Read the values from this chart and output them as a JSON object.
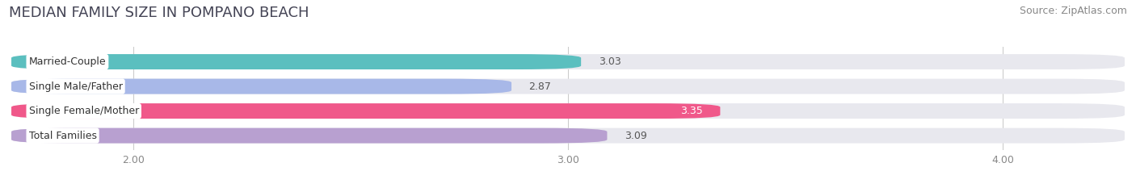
{
  "title": "MEDIAN FAMILY SIZE IN POMPANO BEACH",
  "source": "Source: ZipAtlas.com",
  "categories": [
    "Married-Couple",
    "Single Male/Father",
    "Single Female/Mother",
    "Total Families"
  ],
  "values": [
    3.03,
    2.87,
    3.35,
    3.09
  ],
  "bar_colors": [
    "#5BBFBF",
    "#A8B8E8",
    "#F0588A",
    "#B8A0D0"
  ],
  "value_inside": [
    false,
    false,
    true,
    false
  ],
  "xlim_left": 1.72,
  "xlim_right": 4.28,
  "xticks": [
    2.0,
    3.0,
    4.0
  ],
  "xtick_labels": [
    "2.00",
    "3.00",
    "4.00"
  ],
  "background_color": "#ffffff",
  "bar_bg_color": "#e8e8ee",
  "title_fontsize": 13,
  "source_fontsize": 9,
  "label_fontsize": 9,
  "value_fontsize": 9,
  "tick_fontsize": 9,
  "bar_height": 0.62,
  "bar_gap": 0.38
}
